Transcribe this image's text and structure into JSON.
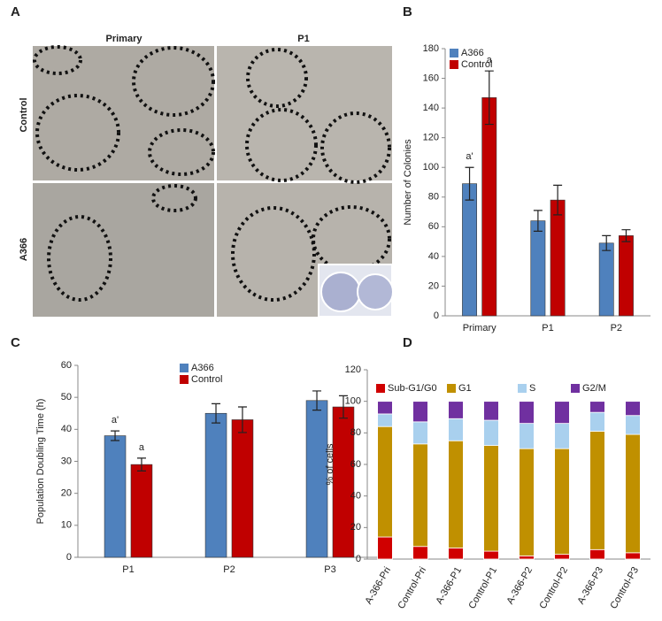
{
  "panel_a": {
    "panel": "A",
    "columns": [
      "Primary",
      "P1"
    ],
    "rows": [
      "Control",
      "A366"
    ]
  },
  "chart_data": [
    {
      "type": "bar",
      "panel": "B",
      "y_label": "Number of Colonies",
      "categories": [
        "Primary",
        "P1",
        "P2"
      ],
      "series": [
        {
          "name": "A366",
          "color": "#4f81bd",
          "values": [
            89,
            64,
            49
          ],
          "errors": [
            11,
            7,
            5
          ]
        },
        {
          "name": "Control",
          "color": "#c00000",
          "values": [
            147,
            78,
            54
          ],
          "errors": [
            18,
            10,
            4
          ]
        }
      ],
      "annotations": [
        "a'",
        "a"
      ],
      "ylim": [
        0,
        180
      ],
      "yticks": [
        0,
        20,
        40,
        60,
        80,
        100,
        120,
        140,
        160,
        180
      ],
      "legend": "upper left"
    },
    {
      "type": "bar",
      "panel": "C",
      "y_label": "Population Doubling Time (h)",
      "categories": [
        "P1",
        "P2",
        "P3"
      ],
      "series": [
        {
          "name": "A366",
          "color": "#4f81bd",
          "values": [
            38,
            45,
            49
          ],
          "errors": [
            1.5,
            3,
            3
          ]
        },
        {
          "name": "Control",
          "color": "#c00000",
          "values": [
            29,
            43,
            47
          ],
          "errors": [
            2,
            4,
            3.5
          ]
        }
      ],
      "annotations": [
        "a'",
        "a"
      ],
      "ylim": [
        0,
        60
      ],
      "yticks": [
        0,
        10,
        20,
        30,
        40,
        50,
        60
      ],
      "legend": "upper center"
    },
    {
      "type": "stacked_bar",
      "panel": "D",
      "y_label": "% of cells",
      "categories": [
        "A-366-Pri",
        "Control-Pri",
        "A-366-P1",
        "Control-P1",
        "A-366-P2",
        "Control-P2",
        "A-366-P3",
        "Control-P3"
      ],
      "series": [
        {
          "name": "Sub-G1/G0",
          "color": "#d00000",
          "values": [
            14,
            8,
            7,
            5,
            2,
            3,
            6,
            4
          ]
        },
        {
          "name": "G1",
          "color": "#c09000",
          "values": [
            70,
            65,
            68,
            67,
            68,
            67,
            75,
            75
          ]
        },
        {
          "name": "S",
          "color": "#a9d0ee",
          "values": [
            8,
            14,
            14,
            16,
            16,
            16,
            12,
            12
          ]
        },
        {
          "name": "G2/M",
          "color": "#7030a0",
          "values": [
            8,
            13,
            11,
            12,
            14,
            14,
            7,
            9
          ]
        }
      ],
      "ylim": [
        0,
        120
      ],
      "yticks": [
        0,
        20,
        40,
        60,
        80,
        100,
        120
      ],
      "legend": "upper"
    }
  ]
}
